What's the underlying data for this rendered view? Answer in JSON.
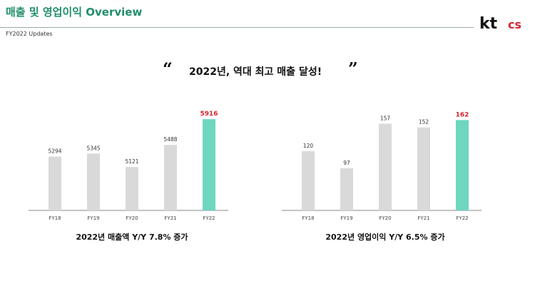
{
  "header": {
    "title": "매출 및 영업이익 Overview",
    "subtitle": "FY2022 Updates"
  },
  "logo": {
    "kt": "kt",
    "cs": "cs",
    "kt_color": "#111111",
    "cs_color": "#d6262f"
  },
  "headline": {
    "quote_open": "“",
    "text": "2022년, 역대 최고 매출 달성!",
    "quote_close": "”"
  },
  "colors": {
    "bar_default": "#d9d9d9",
    "bar_highlight": "#6fd6c0",
    "highlight_label": "#d6262f",
    "axis": "#888888"
  },
  "chart_data": [
    {
      "type": "bar",
      "categories": [
        "FY18",
        "FY19",
        "FY20",
        "FY21",
        "FY22"
      ],
      "values": [
        5294,
        5345,
        5121,
        5488,
        5916
      ],
      "value_labels": [
        "5294",
        "5345",
        "5121",
        "5488",
        "5916"
      ],
      "highlight_index": 4,
      "ylim": [
        4400,
        6000
      ],
      "grid": false,
      "caption": "2022년 매출액 Y/Y 7.8% 증가"
    },
    {
      "type": "bar",
      "categories": [
        "FY18",
        "FY19",
        "FY20",
        "FY21",
        "FY22"
      ],
      "values": [
        120,
        97,
        157,
        152,
        162
      ],
      "value_labels": [
        "120",
        "97",
        "157",
        "152",
        "162"
      ],
      "highlight_index": 4,
      "ylim": [
        40,
        170
      ],
      "grid": false,
      "caption": "2022년 영업이익 Y/Y 6.5% 증가"
    }
  ]
}
